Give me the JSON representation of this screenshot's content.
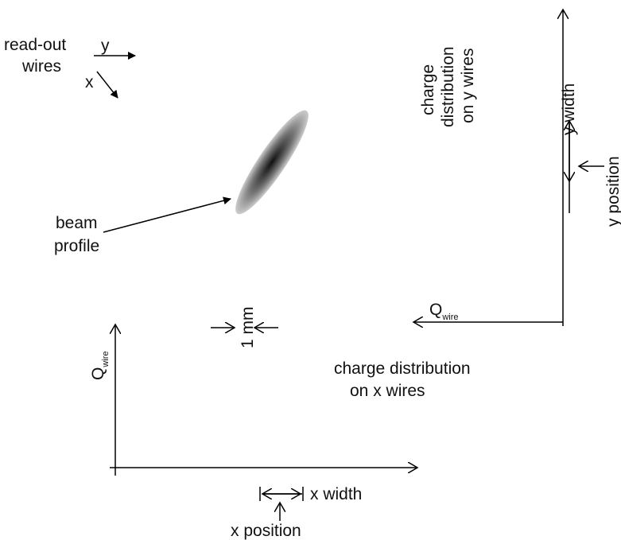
{
  "grid_labels": {
    "readout": "read-out",
    "wires": "wires",
    "y": "y",
    "x": "x",
    "beam": "beam",
    "profile": "profile"
  },
  "y_panel": {
    "title_lines": [
      "charge",
      "distribution",
      "on y wires"
    ],
    "width": "y width",
    "position": "y position",
    "axis": "Q",
    "axis_sub": "wire"
  },
  "x_panel": {
    "title_lines": [
      "charge distribution",
      "on x wires"
    ],
    "scale": "1 mm",
    "width": "x width",
    "position": "x position",
    "axis": "Q",
    "axis_sub": "wire"
  }
}
